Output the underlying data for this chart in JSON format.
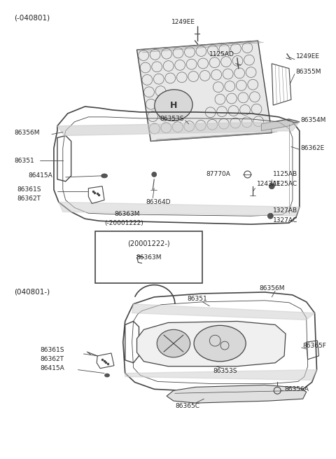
{
  "bg_color": "#ffffff",
  "line_color": "#444444",
  "text_color": "#222222",
  "top_label": "(-040801)",
  "bottom_label": "(040801-)",
  "box_label": "(20001222-)",
  "box_sublabel": "86363M"
}
